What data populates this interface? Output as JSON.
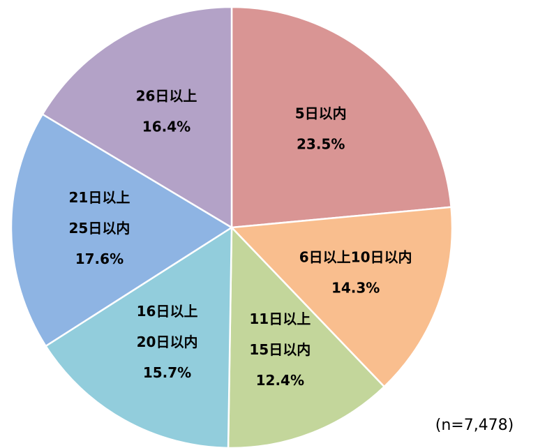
{
  "chart_data": {
    "type": "pie",
    "categories": [
      [
        "5日以内"
      ],
      [
        "6日以上10日以内"
      ],
      [
        "11日以上",
        "15日以内"
      ],
      [
        "16日以上",
        "20日以内"
      ],
      [
        "21日以上",
        "25日以内"
      ],
      [
        "26日以上"
      ]
    ],
    "values": [
      23.5,
      14.3,
      12.4,
      15.7,
      17.6,
      16.4
    ],
    "value_labels": [
      "23.5%",
      "14.3%",
      "12.4%",
      "15.7%",
      "17.6%",
      "16.4%"
    ],
    "colors": [
      "#d99594",
      "#f9be8e",
      "#c3d69b",
      "#92cddc",
      "#8eb4e3",
      "#b3a2c7"
    ],
    "annotation": "(n=7,478)"
  }
}
